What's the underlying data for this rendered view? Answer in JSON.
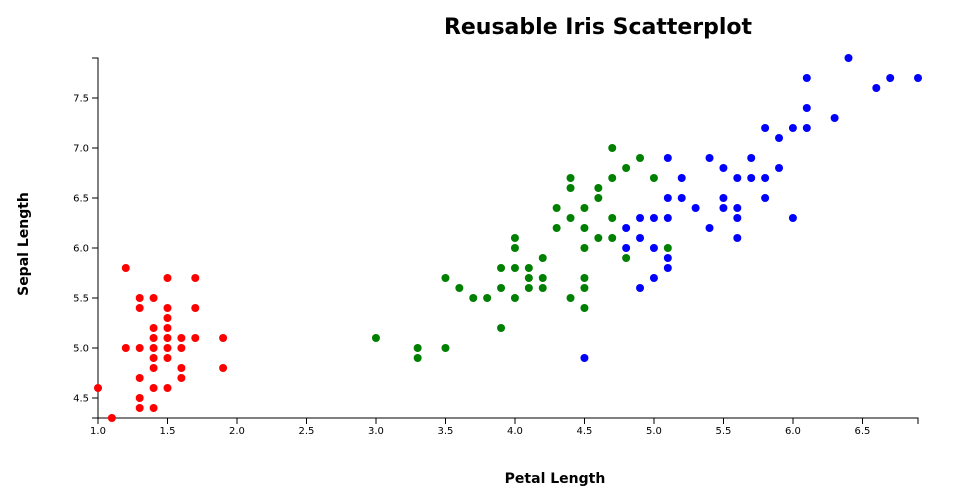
{
  "chart_data": {
    "type": "scatter",
    "title": "Reusable Iris Scatterplot",
    "xlabel": "Petal Length",
    "ylabel": "Sepal Length",
    "xlim": [
      1.0,
      6.9
    ],
    "ylim": [
      4.3,
      7.9
    ],
    "grid": false,
    "x_ticks": [
      "1.0",
      "1.5",
      "2.0",
      "2.5",
      "3.0",
      "3.5",
      "4.0",
      "4.5",
      "5.0",
      "5.5",
      "6.0",
      "6.5"
    ],
    "y_ticks": [
      "4.5",
      "5.0",
      "5.5",
      "6.0",
      "6.5",
      "7.0",
      "7.5"
    ],
    "series": [
      {
        "color": "#ff0000",
        "points": [
          [
            1.0,
            4.6
          ],
          [
            1.1,
            4.3
          ],
          [
            1.2,
            5.8
          ],
          [
            1.2,
            5.0
          ],
          [
            1.3,
            5.5
          ],
          [
            1.3,
            5.4
          ],
          [
            1.3,
            5.0
          ],
          [
            1.3,
            4.7
          ],
          [
            1.3,
            4.5
          ],
          [
            1.3,
            4.4
          ],
          [
            1.4,
            5.5
          ],
          [
            1.4,
            5.2
          ],
          [
            1.4,
            5.1
          ],
          [
            1.4,
            5.0
          ],
          [
            1.4,
            4.9
          ],
          [
            1.4,
            4.8
          ],
          [
            1.4,
            4.6
          ],
          [
            1.4,
            4.4
          ],
          [
            1.5,
            5.7
          ],
          [
            1.5,
            5.4
          ],
          [
            1.5,
            5.3
          ],
          [
            1.5,
            5.2
          ],
          [
            1.5,
            5.1
          ],
          [
            1.5,
            5.0
          ],
          [
            1.5,
            4.9
          ],
          [
            1.5,
            4.6
          ],
          [
            1.6,
            5.1
          ],
          [
            1.6,
            5.0
          ],
          [
            1.6,
            4.8
          ],
          [
            1.6,
            4.7
          ],
          [
            1.7,
            5.7
          ],
          [
            1.7,
            5.4
          ],
          [
            1.7,
            5.1
          ],
          [
            1.9,
            5.1
          ],
          [
            1.9,
            4.8
          ]
        ]
      },
      {
        "color": "#008000",
        "points": [
          [
            3.0,
            5.1
          ],
          [
            3.3,
            5.0
          ],
          [
            3.3,
            4.9
          ],
          [
            3.5,
            5.7
          ],
          [
            3.5,
            5.0
          ],
          [
            3.6,
            5.6
          ],
          [
            3.7,
            5.5
          ],
          [
            3.8,
            5.5
          ],
          [
            3.9,
            5.8
          ],
          [
            3.9,
            5.6
          ],
          [
            3.9,
            5.2
          ],
          [
            4.0,
            6.1
          ],
          [
            4.0,
            6.0
          ],
          [
            4.0,
            5.8
          ],
          [
            4.0,
            5.5
          ],
          [
            4.1,
            5.8
          ],
          [
            4.1,
            5.7
          ],
          [
            4.1,
            5.6
          ],
          [
            4.2,
            5.9
          ],
          [
            4.2,
            5.7
          ],
          [
            4.2,
            5.6
          ],
          [
            4.3,
            6.4
          ],
          [
            4.3,
            6.2
          ],
          [
            4.4,
            6.7
          ],
          [
            4.4,
            6.6
          ],
          [
            4.4,
            6.3
          ],
          [
            4.4,
            5.5
          ],
          [
            4.5,
            6.4
          ],
          [
            4.5,
            6.2
          ],
          [
            4.5,
            6.0
          ],
          [
            4.5,
            5.7
          ],
          [
            4.5,
            5.6
          ],
          [
            4.5,
            5.4
          ],
          [
            4.6,
            6.6
          ],
          [
            4.6,
            6.5
          ],
          [
            4.6,
            6.1
          ],
          [
            4.7,
            7.0
          ],
          [
            4.7,
            6.7
          ],
          [
            4.7,
            6.3
          ],
          [
            4.7,
            6.1
          ],
          [
            4.8,
            6.8
          ],
          [
            4.8,
            5.9
          ],
          [
            4.9,
            6.9
          ],
          [
            5.0,
            6.7
          ],
          [
            5.1,
            6.0
          ]
        ]
      },
      {
        "color": "#0000ff",
        "points": [
          [
            4.5,
            4.9
          ],
          [
            4.8,
            6.2
          ],
          [
            4.8,
            6.0
          ],
          [
            4.9,
            6.3
          ],
          [
            4.9,
            6.1
          ],
          [
            4.9,
            5.6
          ],
          [
            5.0,
            6.3
          ],
          [
            5.0,
            6.0
          ],
          [
            5.0,
            5.7
          ],
          [
            5.1,
            6.9
          ],
          [
            5.1,
            6.5
          ],
          [
            5.1,
            6.3
          ],
          [
            5.1,
            5.9
          ],
          [
            5.1,
            5.8
          ],
          [
            5.2,
            6.7
          ],
          [
            5.2,
            6.5
          ],
          [
            5.3,
            6.4
          ],
          [
            5.4,
            6.9
          ],
          [
            5.4,
            6.2
          ],
          [
            5.5,
            6.8
          ],
          [
            5.5,
            6.5
          ],
          [
            5.5,
            6.4
          ],
          [
            5.6,
            6.7
          ],
          [
            5.6,
            6.4
          ],
          [
            5.6,
            6.3
          ],
          [
            5.6,
            6.1
          ],
          [
            5.7,
            6.9
          ],
          [
            5.7,
            6.7
          ],
          [
            5.8,
            7.2
          ],
          [
            5.8,
            6.7
          ],
          [
            5.8,
            6.5
          ],
          [
            5.9,
            7.1
          ],
          [
            5.9,
            6.8
          ],
          [
            6.0,
            7.2
          ],
          [
            6.0,
            6.3
          ],
          [
            6.1,
            7.7
          ],
          [
            6.1,
            7.4
          ],
          [
            6.1,
            7.2
          ],
          [
            6.3,
            7.3
          ],
          [
            6.4,
            7.9
          ],
          [
            6.6,
            7.6
          ],
          [
            6.7,
            7.7
          ],
          [
            6.9,
            7.7
          ]
        ]
      }
    ]
  }
}
